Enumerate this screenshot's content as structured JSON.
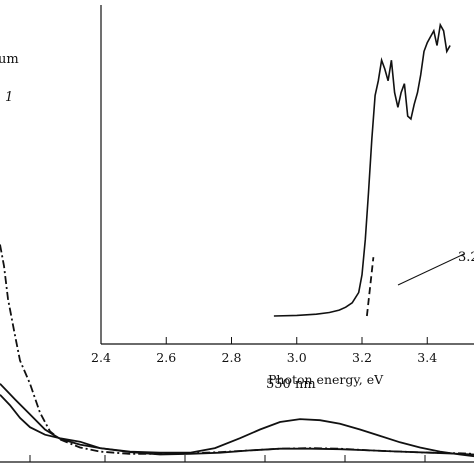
{
  "figure": {
    "left_edge_label_top": "um",
    "left_edge_label_italic": "1",
    "main_annotation": "550 nm"
  },
  "chart_data": [
    {
      "type": "line",
      "title": "",
      "xlabel": "",
      "ylabel": "",
      "x_ticks_visible": false,
      "series": [
        {
          "style": "solid",
          "x": [
            0,
            15,
            30,
            45,
            60,
            80,
            100,
            130,
            160,
            190,
            215,
            240,
            260,
            280,
            300,
            320,
            340,
            360,
            380,
            400,
            420,
            440,
            460,
            474
          ],
          "y": [
            0.135,
            0.108,
            0.082,
            0.056,
            0.04,
            0.03,
            0.024,
            0.018,
            0.016,
            0.016,
            0.024,
            0.041,
            0.056,
            0.069,
            0.074,
            0.072,
            0.066,
            0.056,
            0.045,
            0.034,
            0.025,
            0.018,
            0.013,
            0.01
          ]
        },
        {
          "style": "dash-dot",
          "x": [
            0,
            4,
            8,
            14,
            20,
            30,
            40,
            50,
            60,
            80,
            100,
            130,
            160,
            190,
            220,
            250,
            280,
            310,
            340,
            370,
            400,
            430,
            460,
            474
          ],
          "y": [
            0.375,
            0.338,
            0.281,
            0.227,
            0.175,
            0.135,
            0.085,
            0.053,
            0.039,
            0.025,
            0.018,
            0.014,
            0.014,
            0.015,
            0.017,
            0.02,
            0.023,
            0.024,
            0.023,
            0.02,
            0.018,
            0.016,
            0.015,
            0.014
          ]
        },
        {
          "style": "solid",
          "x": [
            0,
            10,
            20,
            30,
            45,
            60,
            80,
            100,
            130,
            160,
            190,
            220,
            250,
            280,
            310,
            340,
            370,
            400,
            430,
            460,
            474
          ],
          "y": [
            0.116,
            0.098,
            0.076,
            0.06,
            0.047,
            0.041,
            0.035,
            0.024,
            0.017,
            0.013,
            0.014,
            0.016,
            0.02,
            0.023,
            0.023,
            0.022,
            0.02,
            0.018,
            0.016,
            0.014,
            0.013
          ]
        }
      ],
      "annotations": [
        "550 nm"
      ]
    },
    {
      "type": "line",
      "title": "",
      "xlabel": "Photon energy, eV",
      "ylabel": "",
      "xlim": [
        2.4,
        3.5
      ],
      "ylim": [
        0,
        1
      ],
      "x_ticks": [
        2.4,
        2.6,
        2.8,
        3.0,
        3.2,
        3.4
      ],
      "x_tick_labels": [
        "2.4",
        "2.6",
        "2.8",
        "3.0",
        "3.2",
        "3.4"
      ],
      "series": [
        {
          "style": "solid",
          "x": [
            2.93,
            3.0,
            3.06,
            3.1,
            3.13,
            3.15,
            3.17,
            3.19,
            3.2,
            3.21,
            3.22,
            3.23,
            3.24,
            3.25,
            3.26,
            3.27,
            3.28,
            3.29,
            3.3,
            3.31,
            3.32,
            3.33,
            3.34,
            3.35,
            3.36,
            3.37,
            3.38,
            3.39,
            3.4,
            3.41,
            3.42,
            3.43,
            3.44,
            3.45,
            3.46,
            3.47
          ],
          "y": [
            0.0,
            0.002,
            0.006,
            0.012,
            0.02,
            0.03,
            0.045,
            0.08,
            0.14,
            0.26,
            0.42,
            0.6,
            0.75,
            0.8,
            0.87,
            0.84,
            0.8,
            0.87,
            0.76,
            0.71,
            0.76,
            0.79,
            0.68,
            0.67,
            0.72,
            0.76,
            0.82,
            0.9,
            0.93,
            0.95,
            0.97,
            0.92,
            0.99,
            0.97,
            0.9,
            0.92
          ]
        },
        {
          "style": "dashed",
          "x": [
            3.215,
            3.235
          ],
          "y": [
            0.0,
            0.2
          ]
        }
      ],
      "annotations": [
        "3.2"
      ]
    }
  ]
}
